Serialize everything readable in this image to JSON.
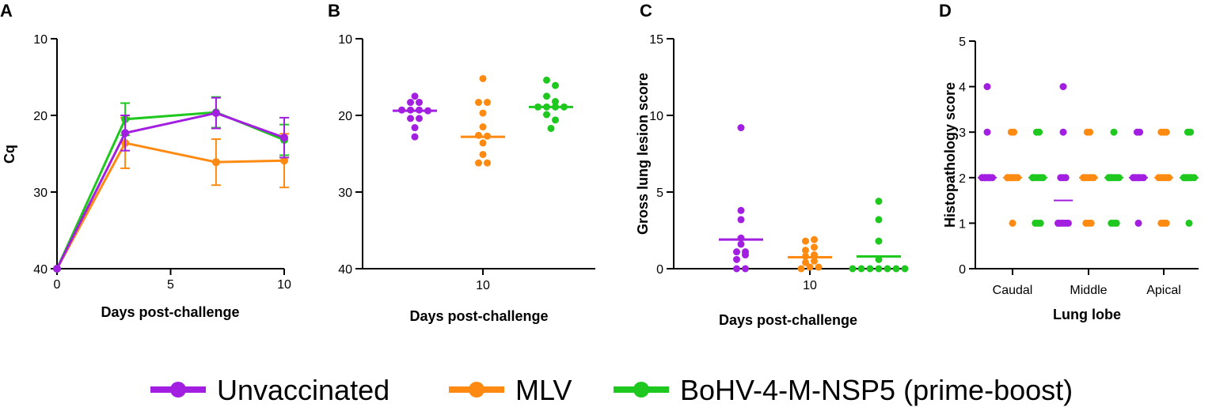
{
  "colors": {
    "Unvaccinated": "#a21ee0",
    "MLV": "#ff8a12",
    "BoHV-4-M-NSP5 (prime-boost)": "#1ec81e"
  },
  "legend": [
    "Unvaccinated",
    "MLV",
    "BoHV-4-M-NSP5 (prime-boost)"
  ],
  "chart_data": [
    {
      "panel": "A",
      "type": "line",
      "title": "",
      "xlabel": "Days post-challenge",
      "ylabel": "Cq",
      "xlim": [
        0,
        10
      ],
      "ylim": [
        10,
        40
      ],
      "y_inverted": true,
      "xticks": [
        0,
        5,
        10
      ],
      "yticks": [
        10,
        20,
        30,
        40
      ],
      "x": [
        0,
        3,
        7,
        10
      ],
      "series": [
        {
          "name": "Unvaccinated",
          "values": [
            40,
            22.3,
            19.7,
            22.9
          ],
          "errors": [
            0,
            2.3,
            2.0,
            2.6
          ]
        },
        {
          "name": "MLV",
          "values": [
            40,
            23.6,
            26.1,
            25.9
          ],
          "errors": [
            0,
            3.3,
            3.0,
            3.5
          ]
        },
        {
          "name": "BoHV-4-M-NSP5 (prime-boost)",
          "values": [
            40,
            20.5,
            19.6,
            23.2
          ],
          "errors": [
            0,
            2.1,
            2.0,
            2.0
          ]
        }
      ]
    },
    {
      "panel": "B",
      "type": "scatter",
      "title": "",
      "xlabel": "Days post-challenge",
      "ylabel": "",
      "xticks": [
        "10"
      ],
      "ylim": [
        10,
        40
      ],
      "y_inverted": true,
      "yticks": [
        10,
        20,
        30,
        40
      ],
      "series": [
        {
          "name": "Unvaccinated",
          "mean": 19.4,
          "values": [
            17.5,
            18.3,
            18.3,
            19.3,
            19.3,
            19.3,
            19.4,
            20.4,
            20.4,
            21.6,
            22.8
          ]
        },
        {
          "name": "MLV",
          "mean": 22.8,
          "values": [
            15.2,
            18.3,
            18.3,
            19.7,
            21.5,
            22.6,
            22.7,
            23.6,
            25.1,
            26.2,
            26.2
          ]
        },
        {
          "name": "BoHV-4-M-NSP5 (prime-boost)",
          "mean": 18.9,
          "values": [
            15.4,
            16.1,
            17.5,
            18.2,
            18.9,
            18.9,
            18.9,
            18.9,
            19.9,
            20.6,
            21.7
          ]
        }
      ]
    },
    {
      "panel": "C",
      "type": "scatter",
      "title": "",
      "xlabel": "Days post-challenge",
      "ylabel": "Gross lung lesion score",
      "xticks": [
        "10"
      ],
      "ylim": [
        0,
        15
      ],
      "yticks": [
        0,
        5,
        10,
        15
      ],
      "series": [
        {
          "name": "Unvaccinated",
          "mean": 1.9,
          "values": [
            0,
            0,
            0.6,
            0.9,
            1.1,
            1.1,
            1.6,
            2.0,
            3.2,
            3.8,
            9.2
          ]
        },
        {
          "name": "MLV",
          "mean": 0.75,
          "values": [
            0,
            0.1,
            0.1,
            0.4,
            0.5,
            0.8,
            0.9,
            1.2,
            1.4,
            1.8,
            1.9
          ]
        },
        {
          "name": "BoHV-4-M-NSP5 (prime-boost)",
          "mean": 0.8,
          "values": [
            0,
            0,
            0,
            0,
            0,
            0,
            0,
            0.6,
            1.8,
            3.2,
            4.4
          ]
        }
      ]
    },
    {
      "panel": "D",
      "type": "scatter",
      "title": "",
      "xlabel": "Lung lobe",
      "ylabel": "Histopathology score",
      "categories": [
        "Caudal",
        "Middle",
        "Apical"
      ],
      "ylim": [
        0,
        5
      ],
      "yticks": [
        0,
        1,
        2,
        3,
        4,
        5
      ],
      "series": [
        {
          "name": "Unvaccinated",
          "means": [
            2,
            1.5,
            2
          ],
          "values": [
            [
              2,
              2,
              2,
              2,
              2,
              2,
              2,
              2,
              2,
              3,
              4
            ],
            [
              1,
              1,
              1,
              1,
              1,
              1,
              2,
              2,
              2,
              3,
              4
            ],
            [
              1,
              2,
              2,
              2,
              2,
              2,
              2,
              2,
              2,
              3,
              3
            ]
          ]
        },
        {
          "name": "MLV",
          "means": [
            2,
            2,
            2
          ],
          "values": [
            [
              1,
              2,
              2,
              2,
              2,
              2,
              2,
              2,
              2,
              3,
              3
            ],
            [
              1,
              1,
              1,
              2,
              2,
              2,
              2,
              2,
              2,
              3,
              3
            ],
            [
              1,
              1,
              1,
              2,
              2,
              2,
              2,
              2,
              3,
              3,
              3
            ]
          ]
        },
        {
          "name": "BoHV-4-M-NSP5 (prime-boost)",
          "means": [
            2,
            2,
            2
          ],
          "values": [
            [
              1,
              1,
              1,
              2,
              2,
              2,
              2,
              2,
              2,
              3,
              3
            ],
            [
              1,
              1,
              1,
              2,
              2,
              2,
              2,
              2,
              2,
              2,
              3
            ],
            [
              1,
              2,
              2,
              2,
              2,
              2,
              2,
              2,
              2,
              3,
              3
            ]
          ]
        }
      ]
    }
  ]
}
